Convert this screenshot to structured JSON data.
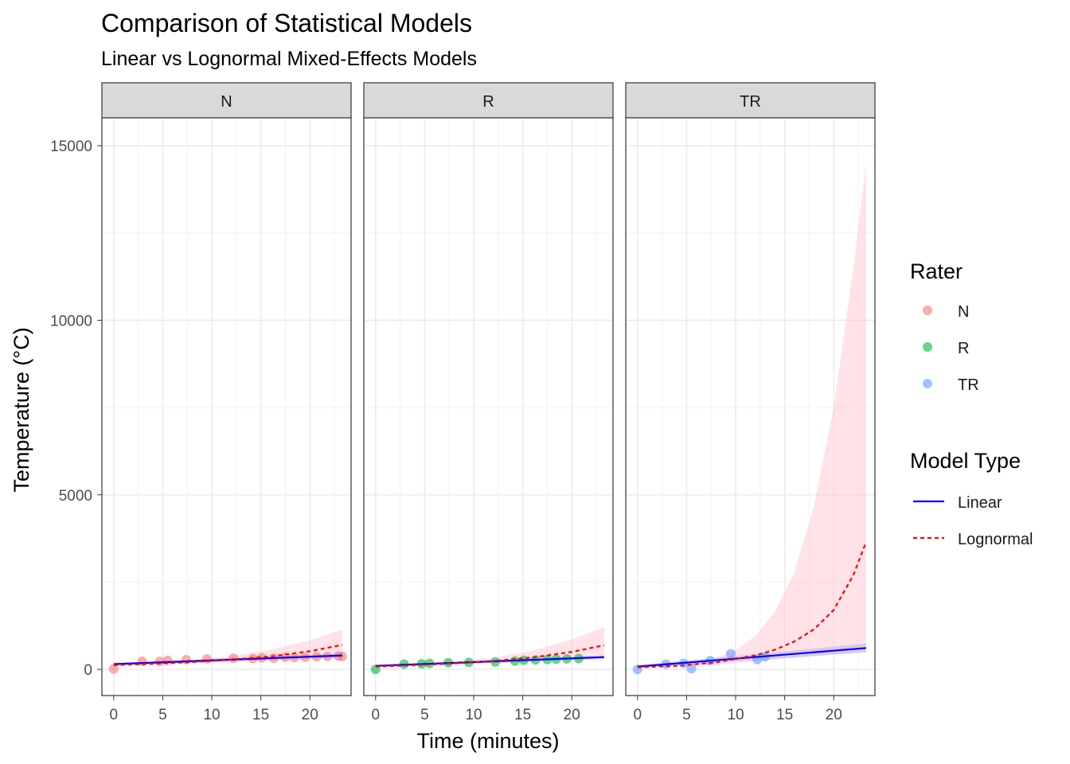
{
  "chart_data": {
    "type": "scatter",
    "title": "Comparison of Statistical Models",
    "subtitle": "Linear vs Lognormal Mixed-Effects Models",
    "xlabel": "Time (minutes)",
    "ylabel": "Temperature (°C)",
    "xlim": [
      -1.2,
      24.2
    ],
    "ylim": [
      -750,
      15800
    ],
    "x_ticks": [
      0,
      5,
      10,
      15,
      20
    ],
    "y_ticks": [
      0,
      5000,
      10000,
      15000
    ],
    "grid": true,
    "colors": {
      "N": "#F8766D",
      "R": "#00BA38",
      "TR": "#619CFF",
      "linear": "#0000FF",
      "lognormal": "#FF0000",
      "lognormal_band": "#FFC0CB",
      "strip_bg": "#D9D9D9"
    },
    "facets": [
      {
        "label": "N",
        "points": [
          [
            0,
            10
          ],
          [
            2.9,
            230
          ],
          [
            4.7,
            230
          ],
          [
            5.5,
            260
          ],
          [
            7.4,
            280
          ],
          [
            9.5,
            300
          ],
          [
            12.2,
            320
          ],
          [
            14.2,
            310
          ],
          [
            15.1,
            330
          ],
          [
            16.3,
            320
          ],
          [
            17.5,
            350
          ],
          [
            18.4,
            340
          ],
          [
            19.5,
            350
          ],
          [
            20.7,
            360
          ],
          [
            21.8,
            370
          ],
          [
            22.9,
            380
          ],
          [
            23.3,
            370
          ]
        ],
        "linear": [
          [
            0,
            150
          ],
          [
            23.3,
            400
          ]
        ],
        "lognormal": [
          [
            0,
            120
          ],
          [
            4,
            160
          ],
          [
            8,
            210
          ],
          [
            12,
            280
          ],
          [
            16,
            370
          ],
          [
            20,
            520
          ],
          [
            23.3,
            700
          ]
        ],
        "lognormal_ci": [
          [
            0,
            100,
            140
          ],
          [
            8,
            170,
            260
          ],
          [
            12,
            210,
            380
          ],
          [
            16,
            250,
            560
          ],
          [
            20,
            290,
            830
          ],
          [
            23.3,
            320,
            1150
          ]
        ],
        "linear_ci": [
          [
            0,
            120,
            180
          ],
          [
            23.3,
            340,
            460
          ]
        ]
      },
      {
        "label": "R",
        "points": [
          [
            0,
            0
          ],
          [
            2.9,
            150
          ],
          [
            4.7,
            160
          ],
          [
            5.5,
            170
          ],
          [
            7.4,
            190
          ],
          [
            9.5,
            200
          ],
          [
            12.2,
            210
          ],
          [
            14.2,
            240
          ],
          [
            15.1,
            260
          ],
          [
            16.3,
            270
          ],
          [
            17.5,
            280
          ],
          [
            18.4,
            290
          ],
          [
            19.5,
            300
          ],
          [
            20.7,
            310
          ]
        ],
        "linear": [
          [
            0,
            100
          ],
          [
            23.3,
            350
          ]
        ],
        "lognormal": [
          [
            0,
            80
          ],
          [
            4,
            120
          ],
          [
            8,
            170
          ],
          [
            12,
            240
          ],
          [
            16,
            340
          ],
          [
            20,
            500
          ],
          [
            23.3,
            690
          ]
        ],
        "lognormal_ci": [
          [
            0,
            65,
            100
          ],
          [
            8,
            140,
            220
          ],
          [
            12,
            180,
            340
          ],
          [
            16,
            220,
            540
          ],
          [
            20,
            260,
            860
          ],
          [
            23.3,
            290,
            1200
          ]
        ],
        "linear_ci": [
          [
            0,
            75,
            125
          ],
          [
            23.3,
            300,
            400
          ]
        ]
      },
      {
        "label": "TR",
        "points": [
          [
            0,
            0
          ],
          [
            2.9,
            150
          ],
          [
            4.7,
            170
          ],
          [
            5.5,
            20
          ],
          [
            7.4,
            250
          ],
          [
            9.5,
            450
          ],
          [
            12.2,
            280
          ],
          [
            13.0,
            360
          ]
        ],
        "linear": [
          [
            0,
            80
          ],
          [
            23.3,
            610
          ]
        ],
        "lognormal": [
          [
            0,
            60
          ],
          [
            4,
            100
          ],
          [
            8,
            200
          ],
          [
            12,
            400
          ],
          [
            14,
            560
          ],
          [
            16,
            800
          ],
          [
            18,
            1150
          ],
          [
            20,
            1700
          ],
          [
            22,
            2700
          ],
          [
            23.3,
            3650
          ]
        ],
        "lognormal_ci": [
          [
            0,
            45,
            80
          ],
          [
            4,
            80,
            150
          ],
          [
            8,
            130,
            330
          ],
          [
            10,
            180,
            550
          ],
          [
            12,
            230,
            950
          ],
          [
            14,
            280,
            1650
          ],
          [
            16,
            330,
            2800
          ],
          [
            18,
            380,
            4700
          ],
          [
            20,
            430,
            7500
          ],
          [
            22,
            480,
            11500
          ],
          [
            23.3,
            520,
            14500
          ]
        ],
        "linear_ci": [
          [
            0,
            40,
            120
          ],
          [
            23.3,
            480,
            740
          ]
        ]
      }
    ],
    "legend": {
      "position": "right",
      "rater_title": "Rater",
      "rater_items": [
        "N",
        "R",
        "TR"
      ],
      "model_title": "Model Type",
      "model_items": [
        "Linear",
        "Lognormal"
      ]
    }
  }
}
